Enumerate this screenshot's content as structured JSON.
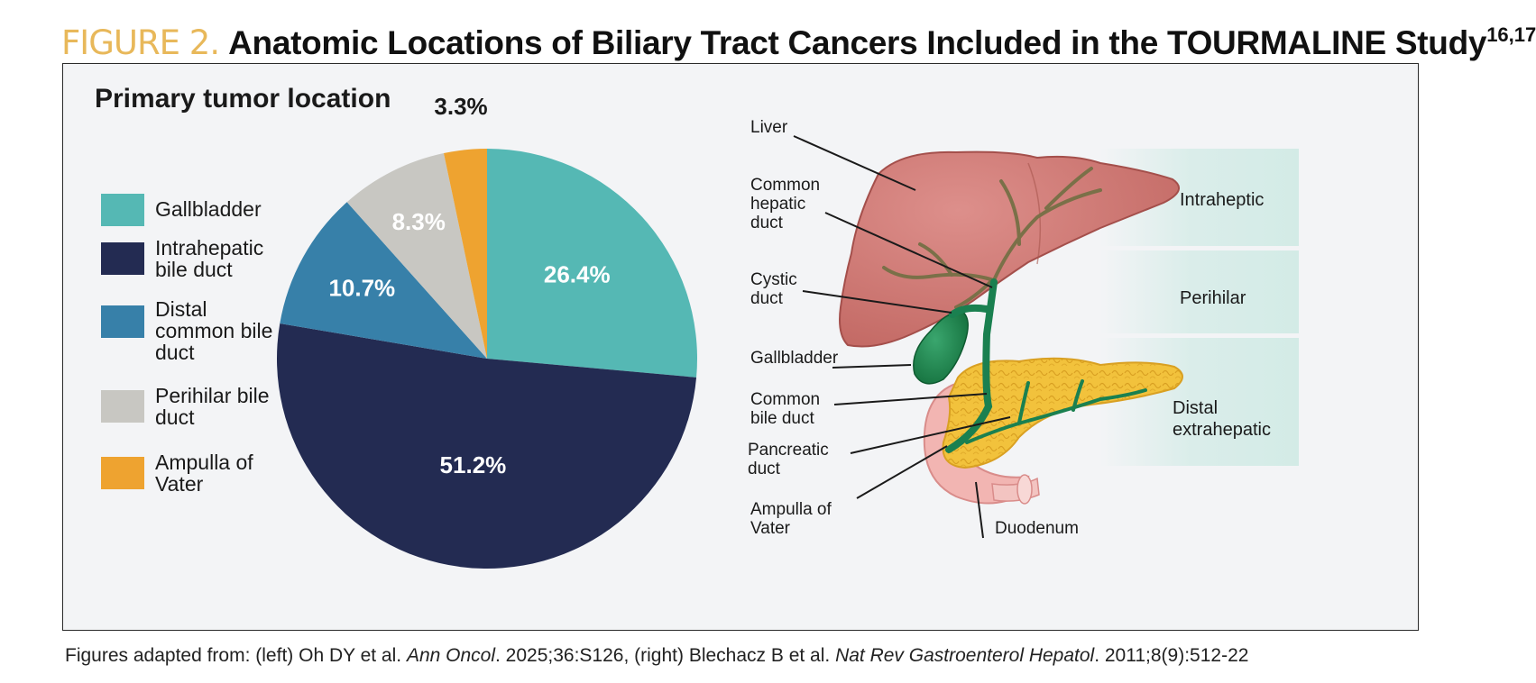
{
  "figure": {
    "label": "FIGURE 2.",
    "title": "Anatomic Locations of Biliary Tract Cancers Included in the TOURMALINE Study",
    "superscript": "16,17"
  },
  "colors": {
    "gallbladder": "#55b8b4",
    "intrahepatic": "#232b52",
    "distal": "#3780a9",
    "perihilar": "#c8c7c2",
    "ampulla": "#eea330",
    "panel_bg": "#f3f4f6"
  },
  "chart_data": {
    "type": "pie",
    "title": "Primary tumor location",
    "start_angle_deg": 0,
    "direction": "clockwise",
    "legend_position": "left",
    "slices": [
      {
        "label": "Gallbladder",
        "value": 26.4,
        "display": "26.4%",
        "color": "#55b8b4"
      },
      {
        "label": "Intrahepatic bile duct",
        "value": 51.2,
        "display": "51.2%",
        "color": "#232b52"
      },
      {
        "label": "Distal common bile duct",
        "value": 10.7,
        "display": "10.7%",
        "color": "#3780a9"
      },
      {
        "label": "Perihilar bile duct",
        "value": 8.3,
        "display": "8.3%",
        "color": "#c8c7c2"
      },
      {
        "label": "Ampulla of Vater",
        "value": 3.3,
        "display": "3.3%",
        "color": "#eea330"
      }
    ]
  },
  "legend": [
    {
      "label": "Gallbladder",
      "color": "#55b8b4"
    },
    {
      "label": "Intrahepatic bile duct",
      "color": "#232b52"
    },
    {
      "label": "Distal common bile duct",
      "color": "#3780a9"
    },
    {
      "label": "Perihilar bile duct",
      "color": "#c8c7c2"
    },
    {
      "label": "Ampulla of Vater",
      "color": "#eea330"
    }
  ],
  "diagram": {
    "labels": {
      "liver": "Liver",
      "common_hepatic_duct": "Common hepatic duct",
      "cystic_duct": "Cystic duct",
      "gallbladder": "Gallbladder",
      "common_bile_duct": "Common bile duct",
      "pancreatic_duct": "Pancreatic duct",
      "ampulla_of_vater": "Ampulla of Vater",
      "duodenum": "Duodenum"
    },
    "regions": {
      "intrahepatic": "Intraheptic",
      "perihilar": "Perihilar",
      "distal_extrahepatic": "Distal extrahepatic"
    }
  },
  "caption": {
    "prefix": "Figures adapted from: (left) Oh DY et al. ",
    "journal1": "Ann Oncol",
    "cite1": ". 2025;36:S126, (right) Blechacz B et al. ",
    "journal2": "Nat Rev Gastroenterol Hepatol",
    "cite2": ". 2011;8(9):512-22"
  }
}
